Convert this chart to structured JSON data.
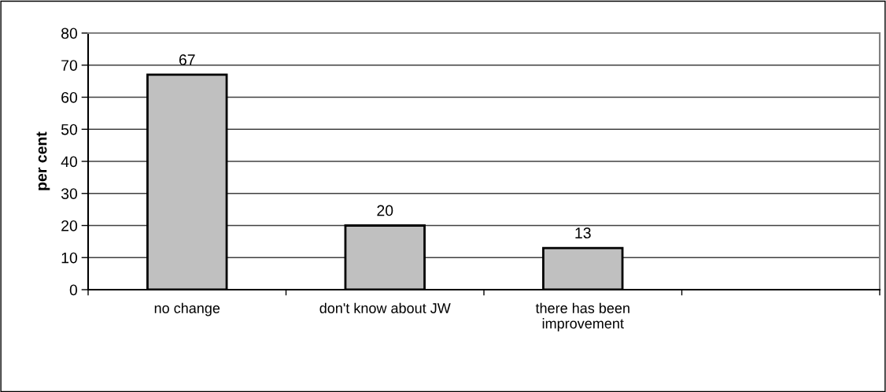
{
  "chart_data": {
    "type": "bar",
    "ylabel": "per cent",
    "categories": [
      "no change",
      "don't know about JW",
      "there has been\nimprovement",
      null
    ],
    "values": [
      67,
      20,
      13,
      null
    ],
    "color": "#c0c0c0",
    "ylim": [
      0,
      80
    ],
    "yticks": [
      0,
      10,
      20,
      30,
      40,
      50,
      60,
      70,
      80
    ],
    "grid": "y",
    "data_labels": true
  }
}
